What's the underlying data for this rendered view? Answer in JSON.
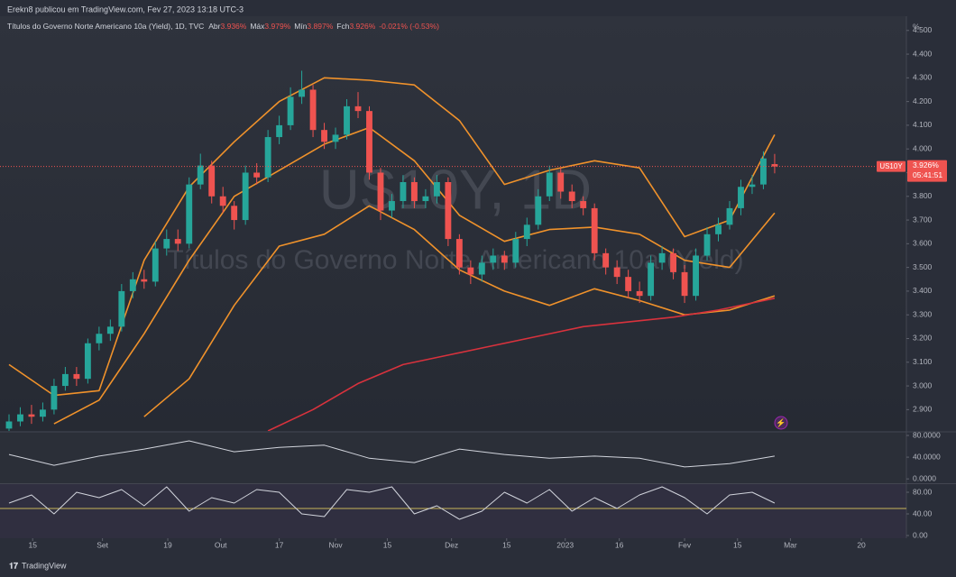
{
  "header": {
    "publisher": "Erekn8 publicou em TradingView.com, Fev 27, 2023 13:18 UTC-3"
  },
  "legend": {
    "symbol": "Títulos do Governo Norte Americano 10a (Yield), 1D, TVC",
    "open_label": "Abr",
    "open": "3.936%",
    "high_label": "Máx",
    "high": "3.979%",
    "low_label": "Mín",
    "low": "3.897%",
    "close_label": "Fch",
    "close": "3.926%",
    "change": "-0.021% (-0.53%)"
  },
  "watermark": {
    "symbol": "US10Y, 1D",
    "name": "Títulos do Governo Norte Americano 10a (Yield)"
  },
  "price_tag": {
    "symbol": "US10Y",
    "price": "3.926%",
    "countdown": "05:41:51"
  },
  "footer": {
    "brand": "TradingView"
  },
  "chart_data": [
    {
      "type": "candlestick",
      "unit": "%",
      "up_color": "#26a69a",
      "down_color": "#ef5350",
      "candles": [
        [
          2.82,
          2.88,
          2.8,
          2.85
        ],
        [
          2.85,
          2.91,
          2.83,
          2.88
        ],
        [
          2.88,
          2.92,
          2.84,
          2.87
        ],
        [
          2.87,
          2.93,
          2.85,
          2.9
        ],
        [
          2.9,
          3.03,
          2.88,
          3.0
        ],
        [
          3.0,
          3.08,
          2.98,
          3.05
        ],
        [
          3.05,
          3.08,
          3.0,
          3.03
        ],
        [
          3.03,
          3.2,
          3.01,
          3.18
        ],
        [
          3.18,
          3.25,
          3.15,
          3.22
        ],
        [
          3.22,
          3.28,
          3.19,
          3.25
        ],
        [
          3.25,
          3.43,
          3.23,
          3.4
        ],
        [
          3.4,
          3.48,
          3.37,
          3.45
        ],
        [
          3.45,
          3.49,
          3.41,
          3.44
        ],
        [
          3.44,
          3.61,
          3.42,
          3.58
        ],
        [
          3.58,
          3.66,
          3.55,
          3.62
        ],
        [
          3.62,
          3.66,
          3.57,
          3.6
        ],
        [
          3.6,
          3.88,
          3.58,
          3.85
        ],
        [
          3.85,
          3.98,
          3.83,
          3.93
        ],
        [
          3.93,
          3.95,
          3.77,
          3.8
        ],
        [
          3.8,
          3.84,
          3.73,
          3.76
        ],
        [
          3.76,
          3.78,
          3.66,
          3.7
        ],
        [
          3.7,
          3.93,
          3.68,
          3.9
        ],
        [
          3.9,
          3.94,
          3.85,
          3.88
        ],
        [
          3.88,
          4.08,
          3.86,
          4.05
        ],
        [
          4.05,
          4.14,
          4.02,
          4.1
        ],
        [
          4.1,
          4.26,
          4.08,
          4.22
        ],
        [
          4.22,
          4.33,
          4.19,
          4.25
        ],
        [
          4.25,
          4.27,
          4.05,
          4.08
        ],
        [
          4.08,
          4.11,
          4.0,
          4.03
        ],
        [
          4.03,
          4.09,
          4.0,
          4.06
        ],
        [
          4.06,
          4.21,
          4.04,
          4.18
        ],
        [
          4.18,
          4.24,
          4.13,
          4.16
        ],
        [
          4.16,
          4.18,
          3.87,
          3.9
        ],
        [
          3.9,
          3.92,
          3.7,
          3.74
        ],
        [
          3.74,
          3.81,
          3.71,
          3.78
        ],
        [
          3.78,
          3.89,
          3.75,
          3.86
        ],
        [
          3.86,
          3.88,
          3.75,
          3.78
        ],
        [
          3.78,
          3.83,
          3.75,
          3.8
        ],
        [
          3.8,
          3.89,
          3.77,
          3.86
        ],
        [
          3.86,
          3.88,
          3.59,
          3.62
        ],
        [
          3.62,
          3.64,
          3.47,
          3.5
        ],
        [
          3.5,
          3.53,
          3.43,
          3.47
        ],
        [
          3.47,
          3.55,
          3.44,
          3.52
        ],
        [
          3.52,
          3.58,
          3.49,
          3.55
        ],
        [
          3.55,
          3.57,
          3.49,
          3.52
        ],
        [
          3.52,
          3.65,
          3.5,
          3.62
        ],
        [
          3.62,
          3.71,
          3.59,
          3.68
        ],
        [
          3.68,
          3.83,
          3.66,
          3.8
        ],
        [
          3.8,
          3.93,
          3.78,
          3.9
        ],
        [
          3.9,
          3.92,
          3.79,
          3.82
        ],
        [
          3.82,
          3.85,
          3.75,
          3.78
        ],
        [
          3.78,
          3.8,
          3.72,
          3.75
        ],
        [
          3.75,
          3.77,
          3.53,
          3.56
        ],
        [
          3.56,
          3.58,
          3.47,
          3.5
        ],
        [
          3.5,
          3.53,
          3.43,
          3.46
        ],
        [
          3.46,
          3.49,
          3.37,
          3.4
        ],
        [
          3.4,
          3.44,
          3.35,
          3.38
        ],
        [
          3.38,
          3.55,
          3.36,
          3.52
        ],
        [
          3.52,
          3.59,
          3.49,
          3.56
        ],
        [
          3.56,
          3.58,
          3.45,
          3.48
        ],
        [
          3.48,
          3.51,
          3.35,
          3.38
        ],
        [
          3.38,
          3.58,
          3.36,
          3.55
        ],
        [
          3.55,
          3.67,
          3.53,
          3.64
        ],
        [
          3.64,
          3.71,
          3.61,
          3.68
        ],
        [
          3.68,
          3.78,
          3.66,
          3.75
        ],
        [
          3.75,
          3.87,
          3.72,
          3.84
        ],
        [
          3.84,
          3.89,
          3.81,
          3.85
        ],
        [
          3.85,
          3.99,
          3.83,
          3.96
        ],
        [
          3.936,
          3.979,
          3.897,
          3.926
        ]
      ],
      "overlays": [
        {
          "color": "#f0922b",
          "x": [
            0,
            4,
            8,
            12,
            16,
            20,
            24,
            28,
            32,
            36,
            40,
            44,
            48,
            52,
            56,
            60,
            64,
            68
          ],
          "values": [
            3.09,
            2.96,
            2.98,
            3.53,
            3.84,
            4.03,
            4.2,
            4.3,
            4.29,
            4.27,
            4.12,
            3.85,
            3.91,
            3.95,
            3.92,
            3.63,
            3.7,
            4.06
          ]
        },
        {
          "color": "#f0922b",
          "x": [
            4,
            8,
            12,
            16,
            20,
            24,
            28,
            32,
            36,
            40,
            44,
            48,
            52,
            56,
            60,
            64,
            68
          ],
          "values": [
            2.84,
            2.94,
            3.22,
            3.53,
            3.8,
            3.91,
            4.02,
            4.09,
            3.95,
            3.72,
            3.61,
            3.66,
            3.67,
            3.64,
            3.53,
            3.5,
            3.73
          ]
        },
        {
          "color": "#f0922b",
          "x": [
            12,
            16,
            20,
            24,
            28,
            32,
            36,
            40,
            44,
            48,
            52,
            56,
            60,
            64,
            68
          ],
          "values": [
            2.87,
            3.03,
            3.34,
            3.59,
            3.64,
            3.76,
            3.66,
            3.49,
            3.4,
            3.34,
            3.41,
            3.36,
            3.3,
            3.32,
            3.38
          ]
        },
        {
          "color": "#d8323d",
          "x": [
            23,
            27,
            31,
            35,
            39,
            43,
            47,
            51,
            55,
            59,
            63,
            68
          ],
          "values": [
            2.81,
            2.9,
            3.01,
            3.09,
            3.13,
            3.17,
            3.21,
            3.25,
            3.27,
            3.29,
            3.32,
            3.37
          ]
        }
      ],
      "xlim": [
        -0.8,
        79.7
      ],
      "xticks": [
        {
          "value": 2.1,
          "label": "15"
        },
        {
          "value": 8.3,
          "label": "Set"
        },
        {
          "value": 14.1,
          "label": "19"
        },
        {
          "value": 18.8,
          "label": "Out"
        },
        {
          "value": 24.0,
          "label": "17"
        },
        {
          "value": 29.0,
          "label": "Nov"
        },
        {
          "value": 33.6,
          "label": "15"
        },
        {
          "value": 39.3,
          "label": "Dez"
        },
        {
          "value": 44.2,
          "label": "15"
        },
        {
          "value": 49.4,
          "label": "2023"
        },
        {
          "value": 54.2,
          "label": "16"
        },
        {
          "value": 60.0,
          "label": "Fev"
        },
        {
          "value": 64.7,
          "label": "15"
        },
        {
          "value": 69.4,
          "label": "Mar"
        },
        {
          "value": 75.7,
          "label": "20"
        }
      ],
      "ylim": [
        2.81,
        4.56
      ],
      "yticks": [
        {
          "value": 2.9,
          "label": "2.900"
        },
        {
          "value": 3.0,
          "label": "3.000"
        },
        {
          "value": 3.1,
          "label": "3.100"
        },
        {
          "value": 3.2,
          "label": "3.200"
        },
        {
          "value": 3.3,
          "label": "3.300"
        },
        {
          "value": 3.4,
          "label": "3.400"
        },
        {
          "value": 3.5,
          "label": "3.500"
        },
        {
          "value": 3.6,
          "label": "3.600"
        },
        {
          "value": 3.7,
          "label": "3.700"
        },
        {
          "value": 3.8,
          "label": "3.800"
        },
        {
          "value": 3.9,
          "label": "3.900"
        },
        {
          "value": 4.0,
          "label": "4.000"
        },
        {
          "value": 4.1,
          "label": "4.100"
        },
        {
          "value": 4.2,
          "label": "4.200"
        },
        {
          "value": 4.3,
          "label": "4.300"
        },
        {
          "value": 4.4,
          "label": "4.400"
        },
        {
          "value": 4.5,
          "label": "4.500"
        }
      ]
    },
    {
      "type": "line",
      "series": [
        {
          "color": "#d1d4dc",
          "x": [
            0,
            4,
            8,
            12,
            16,
            20,
            24,
            28,
            32,
            36,
            40,
            44,
            48,
            52,
            56,
            60,
            64,
            68
          ],
          "values": [
            45,
            25,
            42,
            55,
            70,
            50,
            58,
            62,
            38,
            30,
            55,
            45,
            38,
            42,
            38,
            22,
            28,
            42
          ]
        }
      ],
      "xlim": [
        -0.8,
        79.7
      ],
      "ylim": [
        -8,
        85
      ],
      "yticks": [
        {
          "value": 0,
          "label": "0.0000"
        },
        {
          "value": 40,
          "label": "40.0000"
        },
        {
          "value": 80,
          "label": "80.0000"
        }
      ]
    },
    {
      "type": "line",
      "series": [
        {
          "color": "#d1d4dc",
          "x": [
            0,
            2,
            4,
            6,
            8,
            10,
            12,
            14,
            16,
            18,
            20,
            22,
            24,
            26,
            28,
            30,
            32,
            34,
            36,
            38,
            40,
            42,
            44,
            46,
            48,
            50,
            52,
            54,
            56,
            58,
            60,
            62,
            64,
            66,
            68
          ],
          "values": [
            60,
            75,
            40,
            80,
            70,
            85,
            55,
            90,
            45,
            70,
            60,
            85,
            80,
            40,
            35,
            85,
            80,
            90,
            40,
            55,
            30,
            45,
            80,
            60,
            85,
            45,
            70,
            50,
            75,
            90,
            70,
            40,
            75,
            80,
            60
          ]
        }
      ],
      "hlines": [
        50
      ],
      "hline_color": "#c9b458",
      "xlim": [
        -0.8,
        79.7
      ],
      "ylim": [
        -5,
        95
      ],
      "yticks": [
        {
          "value": 0,
          "label": "0.00"
        },
        {
          "value": 40,
          "label": "40.00"
        },
        {
          "value": 80,
          "label": "80.00"
        }
      ]
    }
  ]
}
